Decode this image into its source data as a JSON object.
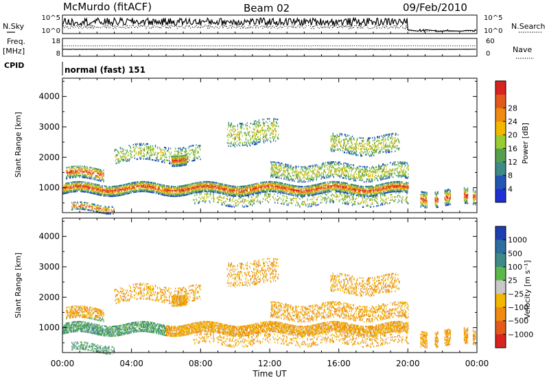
{
  "header": {
    "station": "McMurdo (fitACF)",
    "beam": "Beam 02",
    "date": "09/Feb/2010"
  },
  "left_labels": {
    "nsky": "N.Sky",
    "freq": "Freq.",
    "freq_unit": "[MHz]",
    "cpid": "CPID"
  },
  "right_labels": {
    "nsearch": "N.Search",
    "nave": "Nave"
  },
  "cpid_text": "normal (fast) 151",
  "chart_data": [
    {
      "type": "line",
      "name": "noise",
      "ylabels_left": [
        "10^5",
        "10^0"
      ],
      "ylabels_right": [
        "10^5",
        "10^0"
      ],
      "xlim": [
        0,
        24
      ]
    },
    {
      "type": "line",
      "name": "freq-nave",
      "ylabels_left": [
        "18",
        "8"
      ],
      "ylabels_right": [
        "60",
        "0"
      ],
      "xlim": [
        0,
        24
      ]
    },
    {
      "type": "heatmap",
      "name": "power",
      "ylabel": "Slant Range [km]",
      "ylim": [
        180,
        4600
      ],
      "yticks": [
        "1000",
        "2000",
        "3000",
        "4000"
      ],
      "xlim": [
        0,
        24
      ],
      "colorbar": {
        "label": "Power [dB]",
        "ticks": [
          "4",
          "8",
          "12",
          "16",
          "20",
          "24",
          "28"
        ],
        "colors": [
          "#1f2fd6",
          "#2356b4",
          "#3f8a86",
          "#55a04f",
          "#99cc33",
          "#f2b800",
          "#f08a10",
          "#e2591c",
          "#d8231e"
        ]
      }
    },
    {
      "type": "heatmap",
      "name": "velocity",
      "ylabel": "Slant Range [km]",
      "ylim": [
        180,
        4600
      ],
      "yticks": [
        "1000",
        "2000",
        "3000",
        "4000"
      ],
      "xlim": [
        0,
        24
      ],
      "xticks": [
        "00:00",
        "04:00",
        "08:00",
        "12:00",
        "16:00",
        "20:00",
        "00:00"
      ],
      "xlabel": "Time UT",
      "colorbar": {
        "label": "Velocity [m s⁻¹]",
        "ticks": [
          "1000",
          "500",
          "100",
          "25",
          "−25",
          "−100",
          "−500",
          "−1000"
        ],
        "colors": [
          "#1e3fb0",
          "#2c6ea0",
          "#3f8a86",
          "#5cb84a",
          "#c8c8c8",
          "#f2b800",
          "#f08a10",
          "#e2591c",
          "#d8231e"
        ]
      }
    }
  ]
}
